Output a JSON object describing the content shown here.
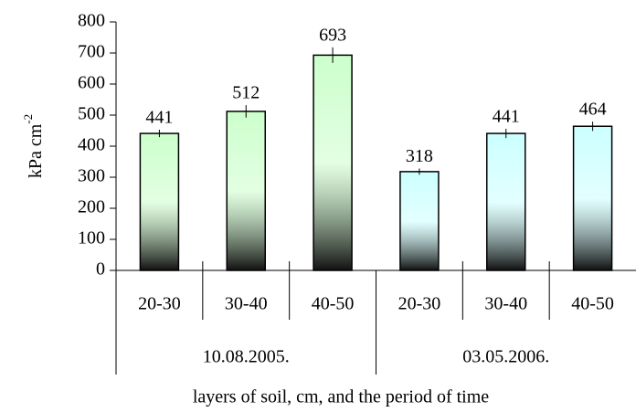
{
  "chart_data": {
    "type": "bar",
    "x_label": "layers of soil, cm, and the period of time",
    "y_label": "kPa cm",
    "y_label_sup": "-2",
    "ylim": [
      0,
      800
    ],
    "yticks": [
      0,
      100,
      200,
      300,
      400,
      500,
      600,
      700,
      800
    ],
    "series": [
      {
        "name": "10.08.2005.",
        "color": "#ccffcc",
        "categories": [
          "20-30",
          "30-40",
          "40-50"
        ],
        "values": [
          441,
          512,
          693
        ],
        "errors": [
          12,
          20,
          25
        ]
      },
      {
        "name": "03.05.2006.",
        "color": "#ccffff",
        "categories": [
          "20-30",
          "30-40",
          "40-50"
        ],
        "values": [
          318,
          441,
          464
        ],
        "errors": [
          10,
          15,
          15
        ]
      }
    ]
  }
}
